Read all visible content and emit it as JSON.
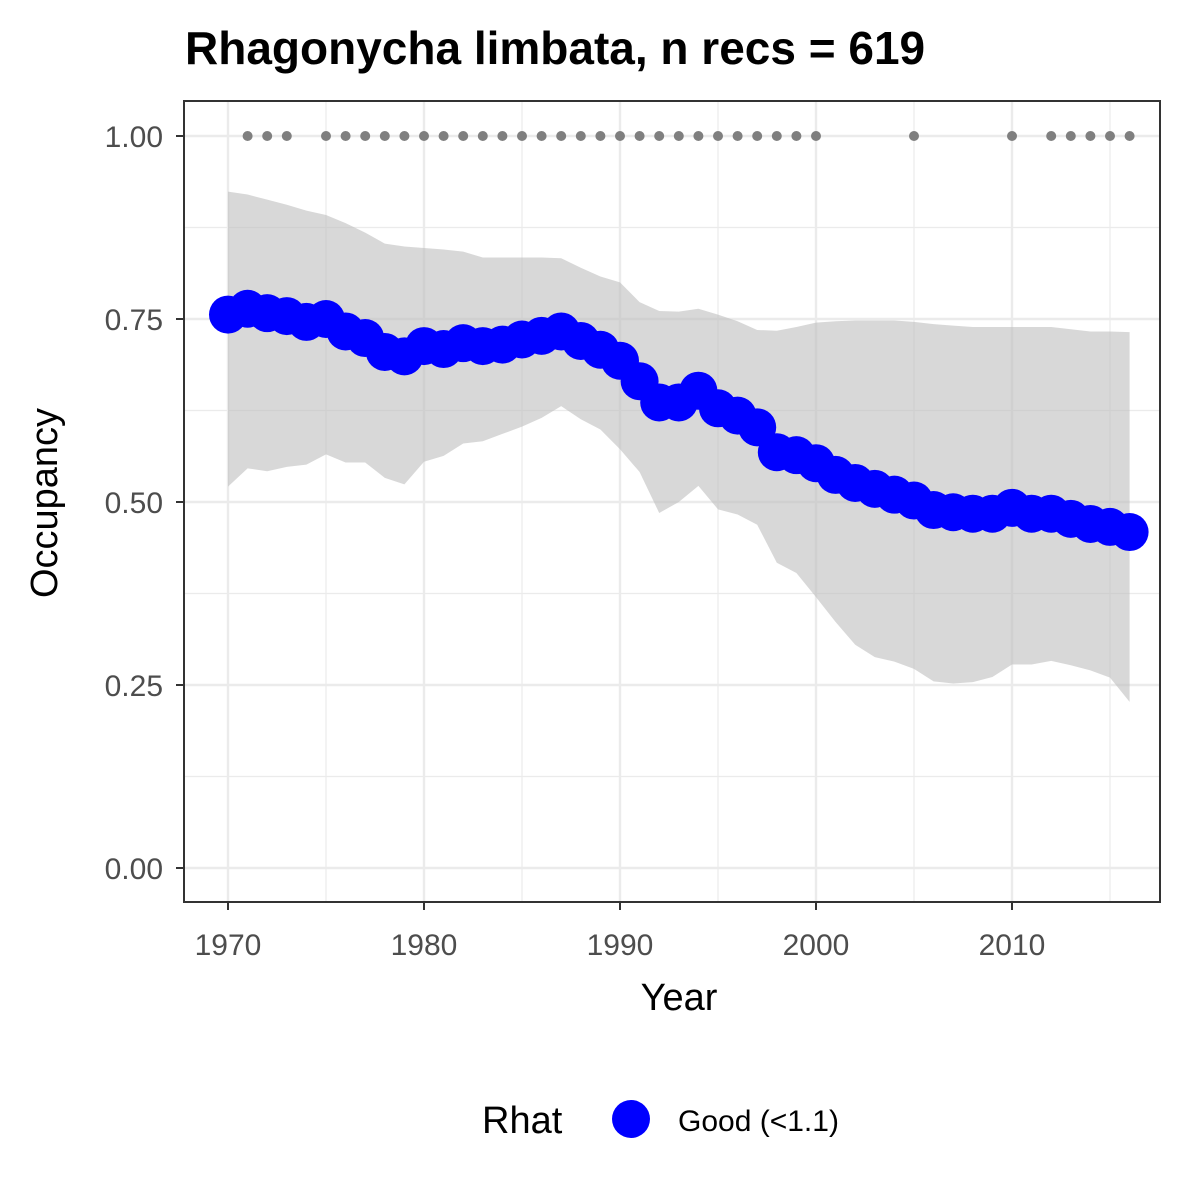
{
  "chart_data": {
    "type": "line",
    "title": "Rhagonycha limbata, n recs = 619",
    "xlabel": "Year",
    "ylabel": "Occupancy",
    "xlim": [
      1967.8,
      1917.9
    ],
    "ylim": [
      -0.045,
      1.045
    ],
    "x_ticks": [
      1970,
      1980,
      1990,
      2000,
      2010
    ],
    "x_tick_labels": [
      "1970",
      "1980",
      "1990",
      "2000",
      "2010"
    ],
    "y_ticks": [
      0,
      0.25,
      0.5,
      0.75,
      1.0
    ],
    "y_tick_labels": [
      "0.00",
      "0.25",
      "0.50",
      "0.75",
      "1.00"
    ],
    "grid": true,
    "legend": {
      "title": "Rhat",
      "position": "bottom",
      "entries": [
        {
          "label": "Good (<1.1)",
          "color": "#0000ff"
        }
      ]
    },
    "colors": {
      "mean": "#0000ff",
      "ribbon": "#bebebe",
      "records": "#7f7f7f",
      "grid": "#ebebeb",
      "panel_border": "#333333"
    },
    "series": [
      {
        "name": "Good (<1.1)",
        "x": [
          1970,
          1971,
          1972,
          1973,
          1974,
          1975,
          1976,
          1977,
          1978,
          1979,
          1980,
          1981,
          1982,
          1983,
          1984,
          1985,
          1986,
          1987,
          1988,
          1989,
          1990,
          1991,
          1992,
          1993,
          1994,
          1995,
          1996,
          1997,
          1998,
          1999,
          2000,
          2001,
          2002,
          2003,
          2004,
          2005,
          2006,
          2007,
          2008,
          2009,
          2010,
          2011,
          2012,
          2013,
          2014,
          2015,
          2016
        ],
        "y": [
          0.756,
          0.764,
          0.758,
          0.754,
          0.746,
          0.75,
          0.733,
          0.724,
          0.705,
          0.699,
          0.713,
          0.709,
          0.717,
          0.713,
          0.715,
          0.722,
          0.727,
          0.733,
          0.72,
          0.708,
          0.693,
          0.665,
          0.636,
          0.636,
          0.652,
          0.628,
          0.618,
          0.602,
          0.568,
          0.564,
          0.553,
          0.537,
          0.526,
          0.518,
          0.51,
          0.502,
          0.489,
          0.486,
          0.484,
          0.484,
          0.492,
          0.484,
          0.484,
          0.477,
          0.47,
          0.466,
          0.459
        ]
      }
    ],
    "ribbon": {
      "x": [
        1970,
        1971,
        1972,
        1973,
        1974,
        1975,
        1976,
        1977,
        1978,
        1979,
        1980,
        1981,
        1982,
        1983,
        1984,
        1985,
        1986,
        1987,
        1988,
        1989,
        1990,
        1991,
        1992,
        1993,
        1994,
        1995,
        1996,
        1997,
        1998,
        1999,
        2000,
        2001,
        2002,
        2003,
        2004,
        2005,
        2006,
        2007,
        2008,
        2009,
        2010,
        2011,
        2012,
        2013,
        2014,
        2015,
        2016
      ],
      "upper": [
        0.924,
        0.92,
        0.913,
        0.906,
        0.898,
        0.892,
        0.881,
        0.868,
        0.853,
        0.849,
        0.847,
        0.845,
        0.842,
        0.834,
        0.834,
        0.834,
        0.834,
        0.833,
        0.82,
        0.808,
        0.8,
        0.773,
        0.761,
        0.76,
        0.764,
        0.756,
        0.747,
        0.735,
        0.734,
        0.739,
        0.745,
        0.747,
        0.748,
        0.748,
        0.748,
        0.746,
        0.743,
        0.741,
        0.739,
        0.739,
        0.739,
        0.739,
        0.739,
        0.736,
        0.733,
        0.733,
        0.732
      ],
      "lower": [
        0.521,
        0.546,
        0.542,
        0.548,
        0.551,
        0.565,
        0.554,
        0.554,
        0.533,
        0.524,
        0.555,
        0.563,
        0.58,
        0.583,
        0.593,
        0.603,
        0.615,
        0.631,
        0.613,
        0.599,
        0.572,
        0.541,
        0.485,
        0.5,
        0.522,
        0.49,
        0.483,
        0.469,
        0.417,
        0.403,
        0.37,
        0.336,
        0.305,
        0.288,
        0.282,
        0.272,
        0.255,
        0.252,
        0.254,
        0.261,
        0.278,
        0.278,
        0.283,
        0.277,
        0.27,
        0.26,
        0.227
      ]
    },
    "records": {
      "y": 1.0,
      "x": [
        1971,
        1972,
        1973,
        1975,
        1976,
        1977,
        1978,
        1979,
        1980,
        1981,
        1982,
        1983,
        1984,
        1985,
        1986,
        1987,
        1988,
        1989,
        1990,
        1991,
        1992,
        1993,
        1994,
        1995,
        1996,
        1997,
        1998,
        1999,
        2000,
        2005,
        2010,
        2012,
        2013,
        2014,
        2015,
        2016
      ]
    }
  }
}
